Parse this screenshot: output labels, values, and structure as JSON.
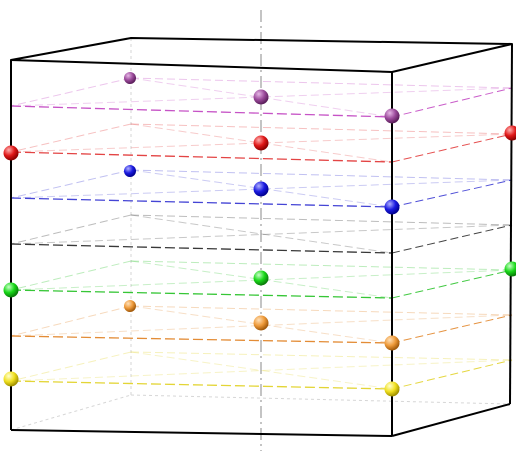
{
  "diagram": {
    "description_visible_text": "",
    "layers": [
      {
        "name": "purple",
        "color": "#c040c0",
        "ball": "#9b4a9b"
      },
      {
        "name": "red",
        "color": "#e03030",
        "ball": "#e01818"
      },
      {
        "name": "blue",
        "color": "#3030d0",
        "ball": "#1a1ae0"
      },
      {
        "name": "black",
        "color": "#222222",
        "ball": null
      },
      {
        "name": "green",
        "color": "#20c020",
        "ball": "#18d818"
      },
      {
        "name": "orange",
        "color": "#e08020",
        "ball": "#ee9a3a"
      },
      {
        "name": "yellow",
        "color": "#e0d020",
        "ball": "#f0e020"
      }
    ],
    "box_edge_color": "#000000",
    "hidden_edge_color": "#cfcfcf",
    "axis_color": "#888888"
  }
}
